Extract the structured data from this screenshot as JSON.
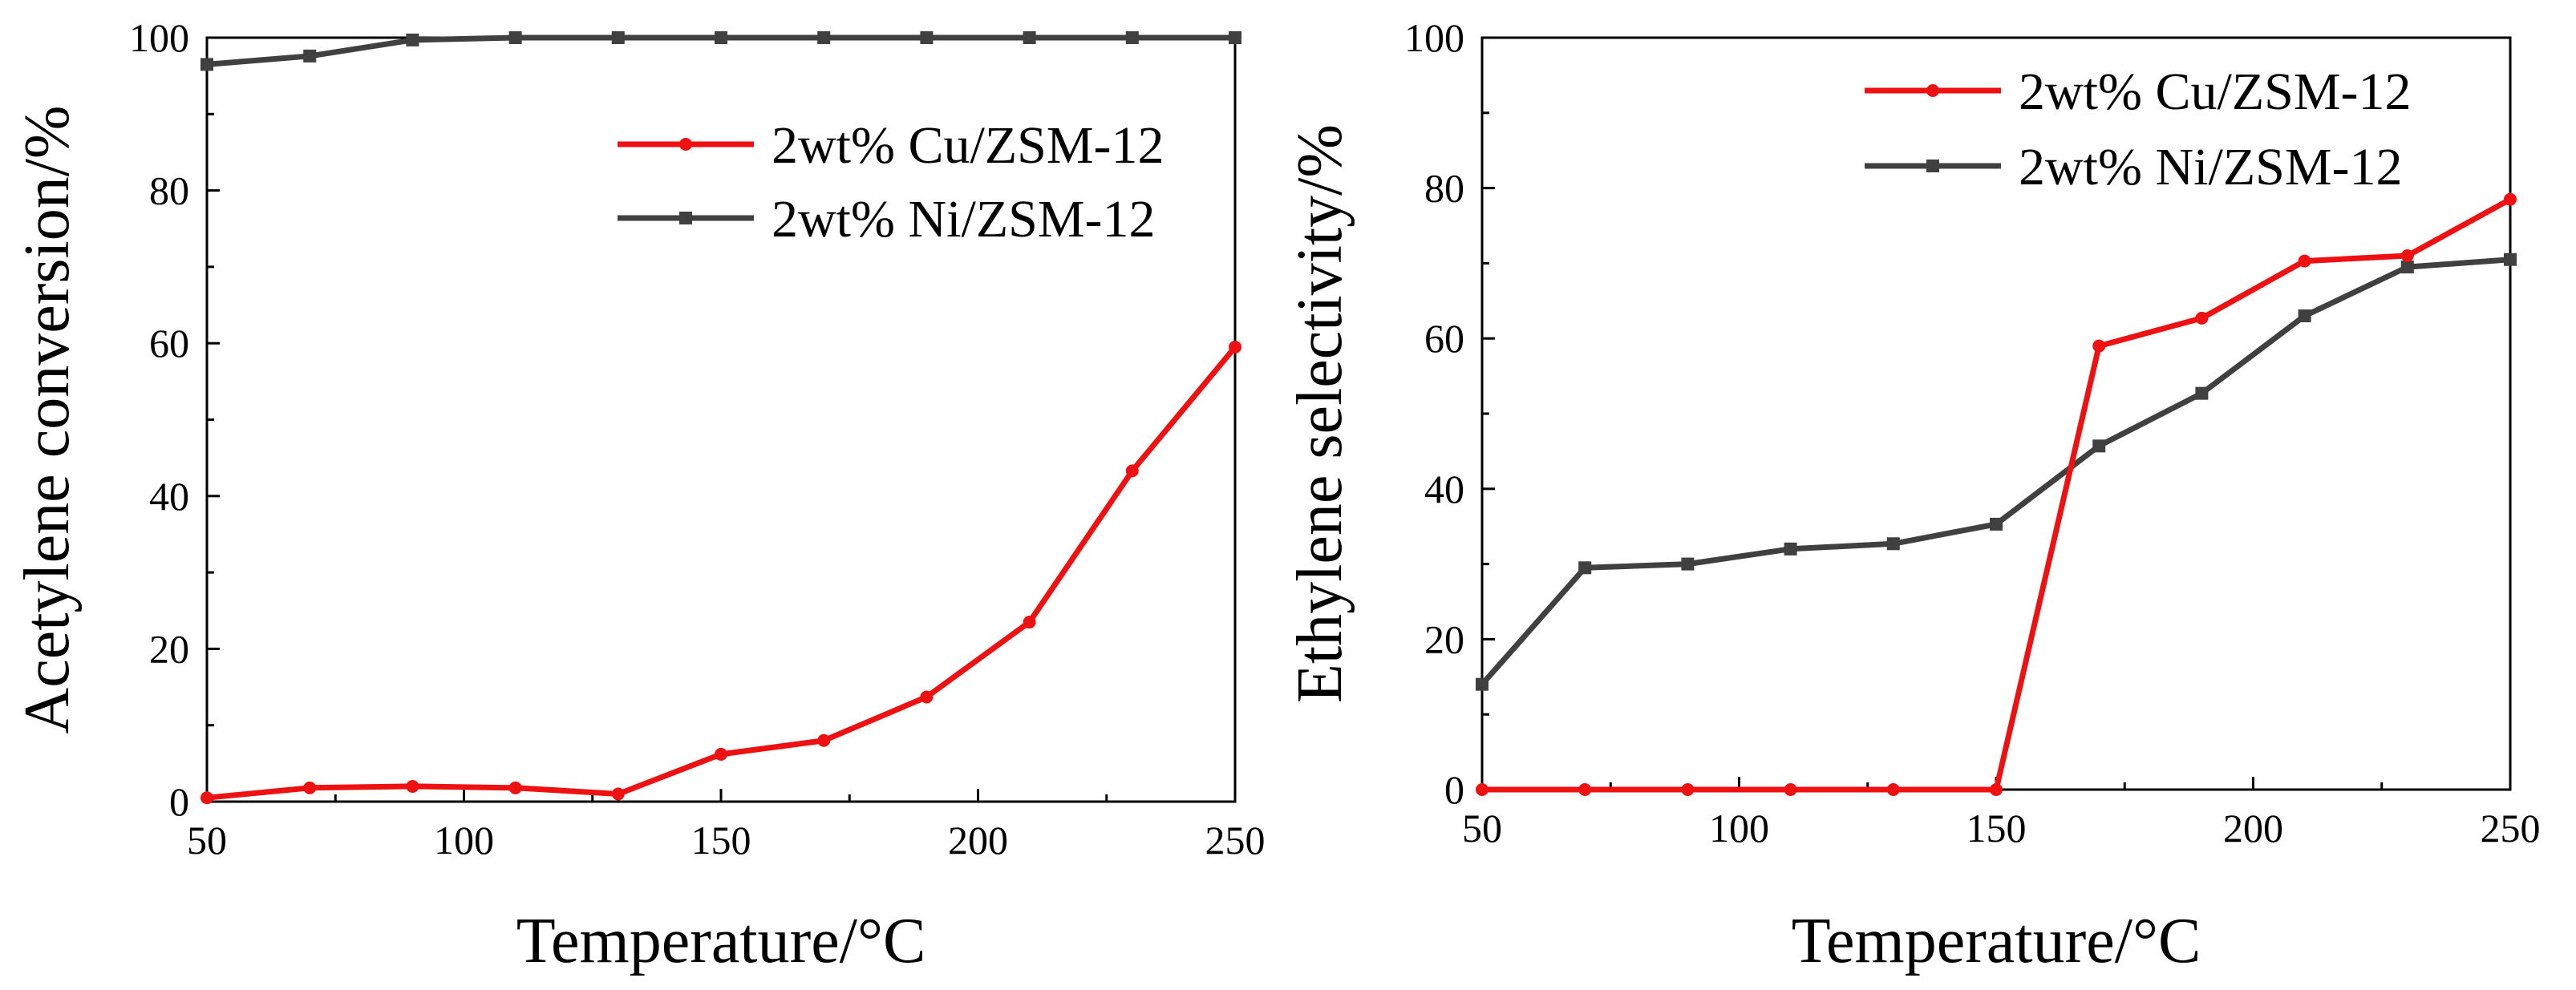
{
  "colors": {
    "cu": "#ee1111",
    "ni": "#404040",
    "axis": "#000000",
    "background": "#ffffff"
  },
  "chart_data": [
    {
      "id": "conversion",
      "type": "line",
      "title": "",
      "xlabel": "Temperature/°C",
      "ylabel": "Acetylene conversion/%",
      "xlim": [
        50,
        250
      ],
      "ylim": [
        0,
        100
      ],
      "xticks": [
        50,
        100,
        150,
        200,
        250
      ],
      "yticks": [
        0,
        20,
        40,
        60,
        80,
        100
      ],
      "grid": false,
      "legend_position": "upper-right",
      "series": [
        {
          "name": "2wt% Cu/ZSM-12",
          "color": "#ee1111",
          "marker": "circle",
          "x": [
            50,
            70,
            90,
            110,
            130,
            150,
            170,
            190,
            210,
            230,
            250
          ],
          "y": [
            0.5,
            1.8,
            2.0,
            1.8,
            1.0,
            6.2,
            8.0,
            13.7,
            23.5,
            43.3,
            59.5
          ]
        },
        {
          "name": "2wt% Ni/ZSM-12",
          "color": "#404040",
          "marker": "square",
          "x": [
            50,
            70,
            90,
            110,
            130,
            150,
            170,
            190,
            210,
            230,
            250
          ],
          "y": [
            96.5,
            97.6,
            99.7,
            100,
            100,
            100,
            100,
            100,
            100,
            100,
            100
          ]
        }
      ]
    },
    {
      "id": "selectivity",
      "type": "line",
      "title": "",
      "xlabel": "Temperature/°C",
      "ylabel": "Ethylene selectivity/%",
      "xlim": [
        50,
        250
      ],
      "ylim": [
        0,
        100
      ],
      "xticks": [
        50,
        100,
        150,
        200,
        250
      ],
      "yticks": [
        0,
        20,
        40,
        60,
        80,
        100
      ],
      "grid": false,
      "legend_position": "upper-right",
      "series": [
        {
          "name": "2wt% Cu/ZSM-12",
          "color": "#ee1111",
          "marker": "circle",
          "x": [
            50,
            70,
            90,
            110,
            130,
            150,
            170,
            190,
            210,
            230,
            250
          ],
          "y": [
            0,
            0,
            0,
            0,
            0,
            0,
            59,
            62.7,
            70.3,
            71,
            78.5
          ]
        },
        {
          "name": "2wt% Ni/ZSM-12",
          "color": "#404040",
          "marker": "square",
          "x": [
            50,
            70,
            90,
            110,
            130,
            150,
            170,
            190,
            210,
            230,
            250
          ],
          "y": [
            14,
            29.5,
            30,
            32,
            32.7,
            35.3,
            45.7,
            52.7,
            63,
            69.5,
            70.5
          ]
        }
      ]
    }
  ]
}
